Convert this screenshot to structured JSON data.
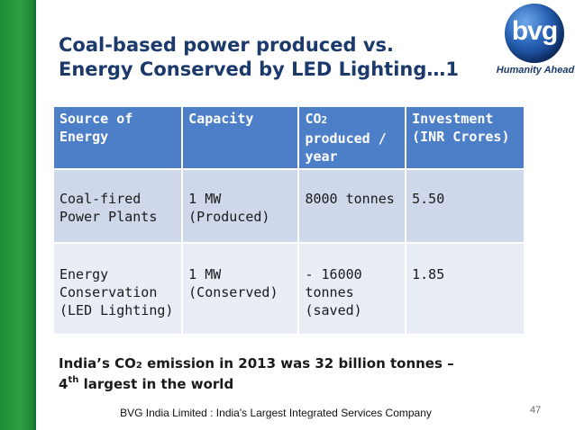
{
  "slide": {
    "title_line1": "Coal-based power produced vs.",
    "title_line2": "Energy Conserved by LED Lighting…1",
    "page_number": "47",
    "footer": "BVG India Limited : India's Largest Integrated Services Company"
  },
  "logo": {
    "text": "bvg",
    "tagline": "Humanity Ahead"
  },
  "table": {
    "headers": {
      "source": [
        "Source of",
        "Energy"
      ],
      "capacity": "Capacity",
      "co2_prefix": "CO",
      "co2_sub": "2",
      "co2_rest": [
        "produced /",
        "year"
      ],
      "investment": [
        "Investment",
        "(INR Crores)"
      ]
    },
    "rows": [
      {
        "source": [
          "Coal-fired",
          "Power Plants"
        ],
        "capacity": [
          "1 MW",
          "(Produced)"
        ],
        "co2": [
          "8000 tonnes"
        ],
        "investment": "5.50"
      },
      {
        "source": [
          "Energy",
          "Conservation",
          "(LED Lighting)"
        ],
        "capacity": [
          "1 MW",
          "(Conserved)"
        ],
        "co2": [
          "- 16000",
          "tonnes",
          "(saved)"
        ],
        "investment": "1.85"
      }
    ]
  },
  "note": {
    "part1": "India’s CO",
    "sub": "2",
    "part2": " emission in 2013 was 32 billion tonnes –",
    "line2_num": "4",
    "line2_sup": "th",
    "line2_rest": " largest in the world"
  },
  "colors": {
    "accent_green": "#2ea043",
    "title_blue": "#1b3a6b",
    "header_blue": "#4d7fc9",
    "row1_bg": "#cfd8ea",
    "row2_bg": "#e8edf6"
  }
}
